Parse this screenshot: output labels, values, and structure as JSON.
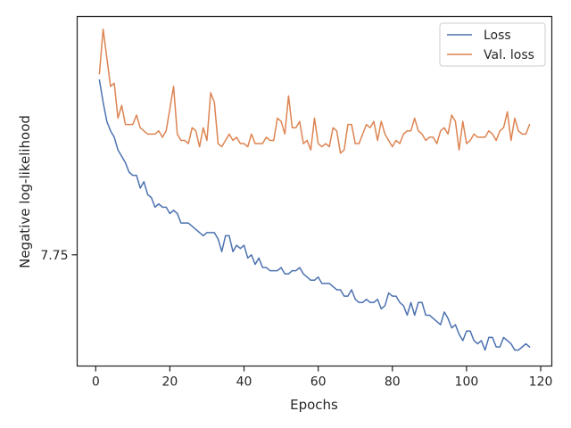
{
  "chart_data": {
    "type": "line",
    "xlabel": "Epochs",
    "ylabel": "Negative log-likelihood",
    "xlim": [
      -5,
      123
    ],
    "ylim": [
      7.4,
      8.5
    ],
    "x_ticks": [
      0,
      20,
      40,
      60,
      80,
      100,
      120
    ],
    "y_ticks": [
      7.75
    ],
    "y_tick_labels": [
      "7.75"
    ],
    "grid": false,
    "legend_position": "top-right",
    "x": [
      1,
      2,
      3,
      4,
      5,
      6,
      7,
      8,
      9,
      10,
      11,
      12,
      13,
      14,
      15,
      16,
      17,
      18,
      19,
      20,
      21,
      22,
      23,
      24,
      25,
      26,
      27,
      28,
      29,
      30,
      31,
      32,
      33,
      34,
      35,
      36,
      37,
      38,
      39,
      40,
      41,
      42,
      43,
      44,
      45,
      46,
      47,
      48,
      49,
      50,
      51,
      52,
      53,
      54,
      55,
      56,
      57,
      58,
      59,
      60,
      61,
      62,
      63,
      64,
      65,
      66,
      67,
      68,
      69,
      70,
      71,
      72,
      73,
      74,
      75,
      76,
      77,
      78,
      79,
      80,
      81,
      82,
      83,
      84,
      85,
      86,
      87,
      88,
      89,
      90,
      91,
      92,
      93,
      94,
      95,
      96,
      97,
      98,
      99,
      100,
      101,
      102,
      103,
      104,
      105,
      106,
      107,
      108,
      109,
      110,
      111,
      112,
      113,
      114,
      115,
      116,
      117
    ],
    "series": [
      {
        "name": "Loss",
        "color": "#4c72b0",
        "values": [
          8.3,
          8.23,
          8.17,
          8.14,
          8.12,
          8.08,
          8.06,
          8.04,
          8.01,
          8.0,
          8.0,
          7.96,
          7.98,
          7.94,
          7.93,
          7.9,
          7.91,
          7.9,
          7.9,
          7.88,
          7.89,
          7.88,
          7.85,
          7.85,
          7.85,
          7.84,
          7.83,
          7.82,
          7.81,
          7.82,
          7.82,
          7.82,
          7.8,
          7.76,
          7.81,
          7.81,
          7.76,
          7.78,
          7.77,
          7.78,
          7.74,
          7.75,
          7.72,
          7.74,
          7.71,
          7.71,
          7.7,
          7.7,
          7.7,
          7.71,
          7.69,
          7.69,
          7.7,
          7.7,
          7.71,
          7.69,
          7.68,
          7.67,
          7.67,
          7.68,
          7.66,
          7.66,
          7.66,
          7.65,
          7.64,
          7.64,
          7.62,
          7.62,
          7.64,
          7.61,
          7.6,
          7.6,
          7.61,
          7.6,
          7.6,
          7.61,
          7.58,
          7.59,
          7.63,
          7.62,
          7.62,
          7.6,
          7.59,
          7.56,
          7.6,
          7.56,
          7.6,
          7.6,
          7.56,
          7.56,
          7.55,
          7.54,
          7.53,
          7.57,
          7.55,
          7.52,
          7.53,
          7.5,
          7.48,
          7.51,
          7.51,
          7.48,
          7.47,
          7.48,
          7.45,
          7.49,
          7.49,
          7.46,
          7.46,
          7.49,
          7.48,
          7.47,
          7.45,
          7.45,
          7.46,
          7.47,
          7.46
        ]
      },
      {
        "name": "Val. loss",
        "color": "#dd8452",
        "values": [
          8.32,
          8.46,
          8.37,
          8.28,
          8.29,
          8.18,
          8.22,
          8.16,
          8.16,
          8.16,
          8.19,
          8.15,
          8.14,
          8.13,
          8.13,
          8.13,
          8.14,
          8.12,
          8.14,
          8.21,
          8.28,
          8.13,
          8.11,
          8.11,
          8.1,
          8.15,
          8.14,
          8.09,
          8.15,
          8.11,
          8.26,
          8.23,
          8.1,
          8.09,
          8.11,
          8.13,
          8.11,
          8.12,
          8.1,
          8.1,
          8.09,
          8.13,
          8.1,
          8.1,
          8.1,
          8.12,
          8.11,
          8.11,
          8.18,
          8.17,
          8.13,
          8.25,
          8.15,
          8.15,
          8.17,
          8.1,
          8.11,
          8.08,
          8.18,
          8.1,
          8.09,
          8.1,
          8.09,
          8.15,
          8.14,
          8.07,
          8.08,
          8.16,
          8.16,
          8.1,
          8.1,
          8.13,
          8.16,
          8.15,
          8.17,
          8.11,
          8.17,
          8.13,
          8.11,
          8.09,
          8.11,
          8.1,
          8.13,
          8.14,
          8.14,
          8.18,
          8.14,
          8.13,
          8.11,
          8.12,
          8.12,
          8.1,
          8.14,
          8.15,
          8.13,
          8.19,
          8.17,
          8.08,
          8.17,
          8.1,
          8.11,
          8.13,
          8.12,
          8.12,
          8.12,
          8.14,
          8.13,
          8.11,
          8.14,
          8.15,
          8.2,
          8.11,
          8.18,
          8.14,
          8.13,
          8.13,
          8.16
        ]
      }
    ]
  }
}
